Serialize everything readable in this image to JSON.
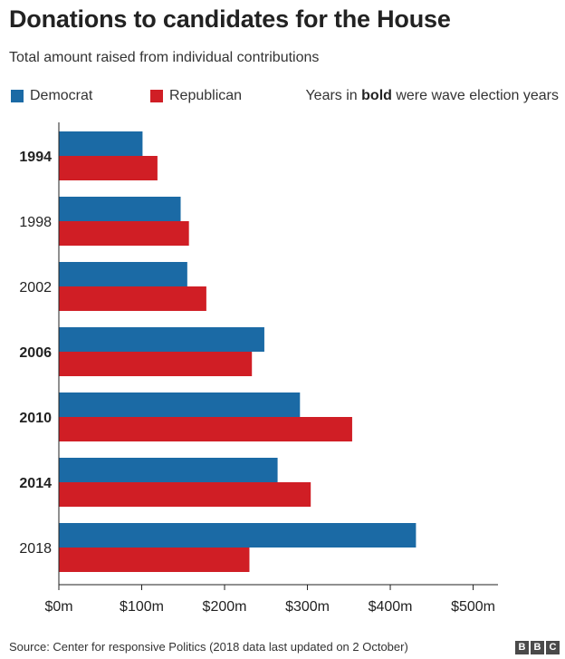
{
  "header": {
    "title": "Donations to candidates for the House",
    "subtitle": "Total amount raised from individual contributions"
  },
  "legend": {
    "democrat_label": "Democrat",
    "republican_label": "Republican",
    "note_before": "Years in ",
    "note_bold": "bold",
    "note_after": " were wave election years"
  },
  "colors": {
    "democrat": "#1b6aa5",
    "republican": "#d01e25",
    "axis": "#222222",
    "grid": "#d9d9d9"
  },
  "chart_data": {
    "type": "bar",
    "orientation": "horizontal",
    "title": "Donations to candidates for the House",
    "subtitle": "Total amount raised from individual contributions",
    "xlabel": "",
    "ylabel": "",
    "categories": [
      "1994",
      "1998",
      "2002",
      "2006",
      "2010",
      "2014",
      "2018"
    ],
    "bold_categories": [
      "1994",
      "2006",
      "2010",
      "2014"
    ],
    "series": [
      {
        "name": "Democrat",
        "color": "#1b6aa5",
        "values": [
          101,
          147,
          155,
          248,
          291,
          264,
          431
        ]
      },
      {
        "name": "Republican",
        "color": "#d01e25",
        "values": [
          119,
          157,
          178,
          233,
          354,
          304,
          230
        ]
      }
    ],
    "xlim": [
      0,
      530
    ],
    "xticks": [
      0,
      100,
      200,
      300,
      400,
      500
    ],
    "xtick_labels": [
      "$0m",
      "$100m",
      "$200m",
      "$300m",
      "$400m",
      "$500m"
    ],
    "grid": false,
    "legend_position": "top"
  },
  "footer": {
    "source": "Source: Center for responsive Politics (2018 data last updated on 2 October)",
    "logo_letters": [
      "B",
      "B",
      "C"
    ]
  }
}
